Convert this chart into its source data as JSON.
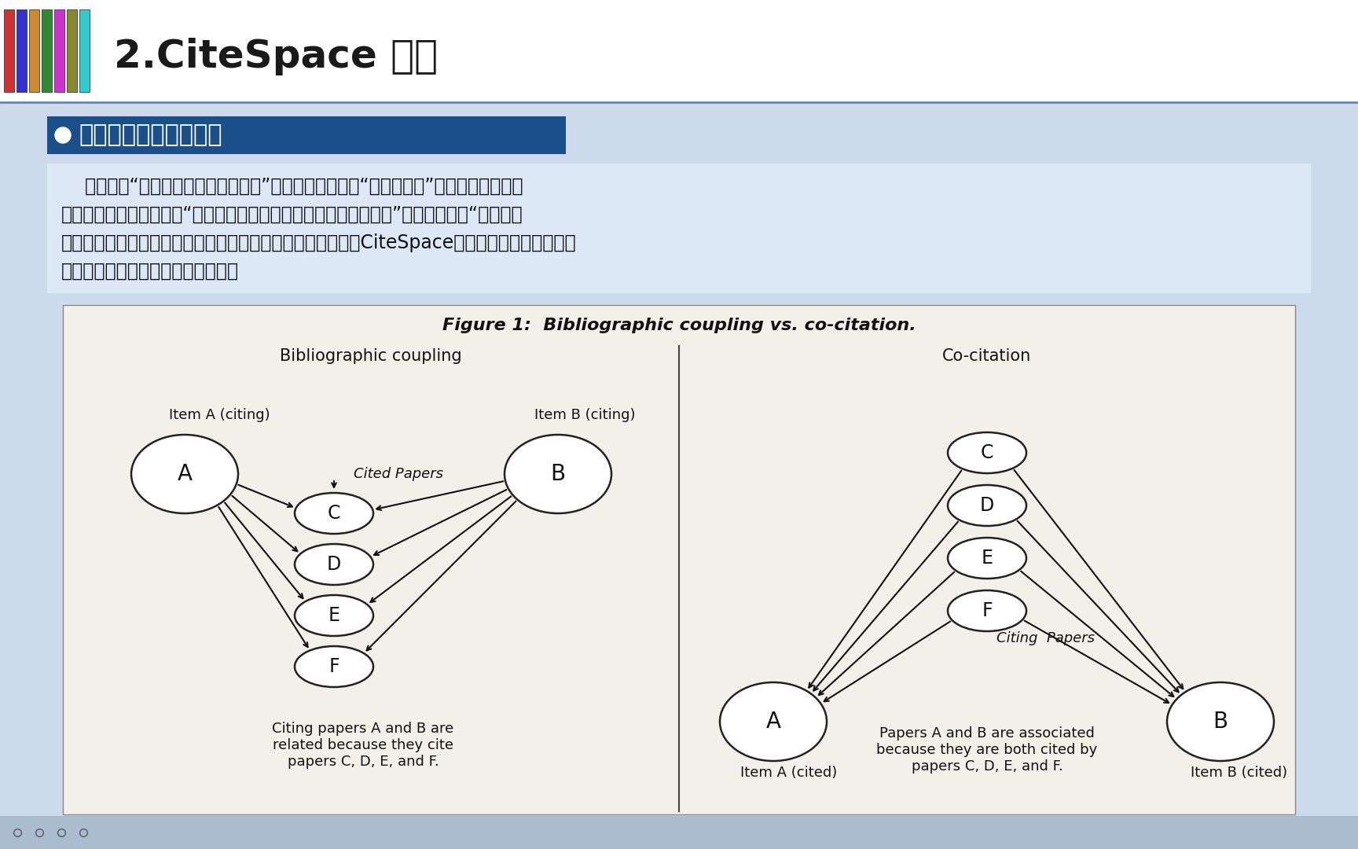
{
  "title": "2.CiteSpace 原理",
  "subtitle": "普赖斯的科学前沿理论",
  "fig_title": "Figure 1:  Bibliographic coupling vs. co-citation.",
  "slide_bg": "#c8d8e8",
  "header_bg": "#ffffff",
  "subtitle_bg": "#1a4f8a",
  "diagram_bg": "#f2f0e8",
  "body_line1": "    在贝尔纳“科学发展模式的网状思想”和加非尔德发明的“引文数据库”基础上，普赖斯在",
  "body_line2": "《科学论文网络》中形成“参考文献的模式标志科学研究前沿的本质”理论，并认为“研究前沿",
  "body_line3": "是基于新近研究成果，随着发展知识网络也会变得越来越密。CiteSpace中的文献耀合和共被引分",
  "body_line4": "析功能，便是基于此理论而实现的。",
  "left_panel_title": "Bibliographic coupling",
  "right_panel_title": "Co-citation",
  "item_a_citing": "Item A (citing)",
  "item_b_citing": "Item B (citing)",
  "cited_papers": "Cited Papers",
  "citing_papers": "Citing  Papers",
  "item_a_cited": "Item A (cited)",
  "item_b_cited": "Item B (cited)",
  "left_caption": "Citing papers A and B are\nrelated because they cite\npapers C, D, E, and F.",
  "right_caption": "Papers A and B are associated\nbecause they are both cited by\npapers C, D, E, and F."
}
